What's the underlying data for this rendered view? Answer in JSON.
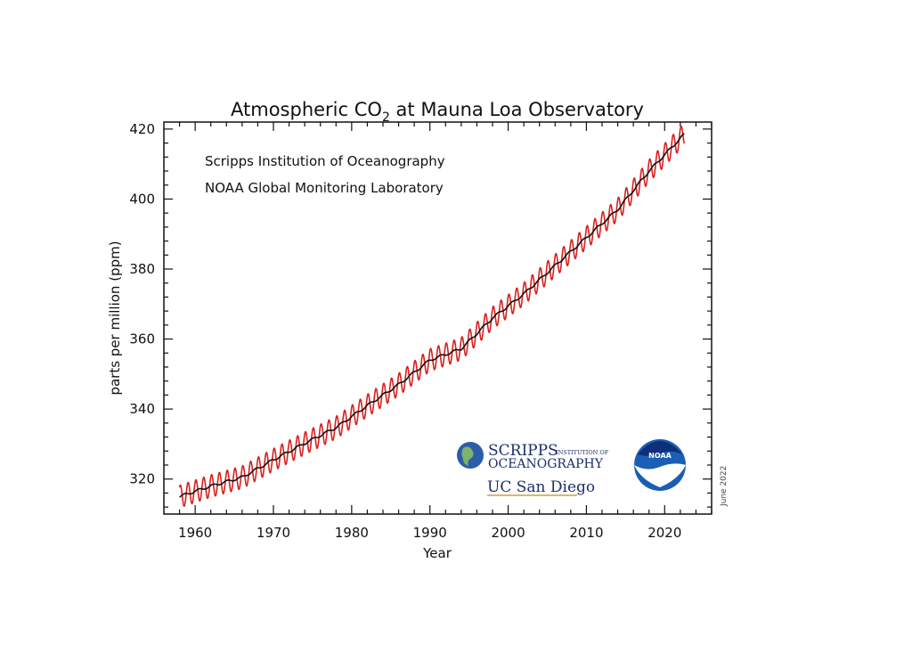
{
  "chart_data": {
    "type": "line",
    "title": {
      "pre": "Atmospheric CO",
      "sub": "2",
      "post": " at Mauna Loa Observatory"
    },
    "xlabel": "Year",
    "ylabel": "parts per million (ppm)",
    "xlim": [
      1956,
      2026
    ],
    "ylim": [
      310,
      422
    ],
    "xticks": [
      1960,
      1970,
      1980,
      1990,
      2000,
      2010,
      2020
    ],
    "yticks": [
      320,
      340,
      360,
      380,
      400,
      420
    ],
    "grid": false,
    "annotations": [
      "Scripps Institution of Oceanography",
      "NOAA Global Monitoring Laboratory"
    ],
    "date_note": "June 2022",
    "seasonal_amplitude_ppm": 3.2,
    "series": [
      {
        "color": "#d7211e",
        "description": "monthly mean (seasonal cycle)",
        "x": [
          1958,
          1962,
          1966,
          1970,
          1974,
          1978,
          1982,
          1986,
          1990,
          1994,
          1998,
          2002,
          2006,
          2010,
          2014,
          2018,
          2022.5
        ],
        "y": [
          315.0,
          318.0,
          320.5,
          325.5,
          330.2,
          334.7,
          341.0,
          347.0,
          354.0,
          357.2,
          366.0,
          372.9,
          381.0,
          389.0,
          397.0,
          408.0,
          418.5
        ]
      },
      {
        "color": "#111111",
        "description": "seasonally adjusted trend",
        "x": [
          1958,
          1962,
          1966,
          1970,
          1974,
          1978,
          1982,
          1986,
          1990,
          1994,
          1998,
          2002,
          2006,
          2010,
          2014,
          2018,
          2022.5
        ],
        "y": [
          315.0,
          318.0,
          320.5,
          325.5,
          330.2,
          334.7,
          341.0,
          347.0,
          354.0,
          357.2,
          366.0,
          372.9,
          381.0,
          389.0,
          397.0,
          408.0,
          418.5
        ]
      }
    ]
  },
  "logos": {
    "scripps_main": "SCRIPPS",
    "scripps_small": "INSTITUTION OF",
    "scripps_second": "OCEANOGRAPHY",
    "ucsd": "UC San Diego",
    "noaa": "NOAA"
  }
}
